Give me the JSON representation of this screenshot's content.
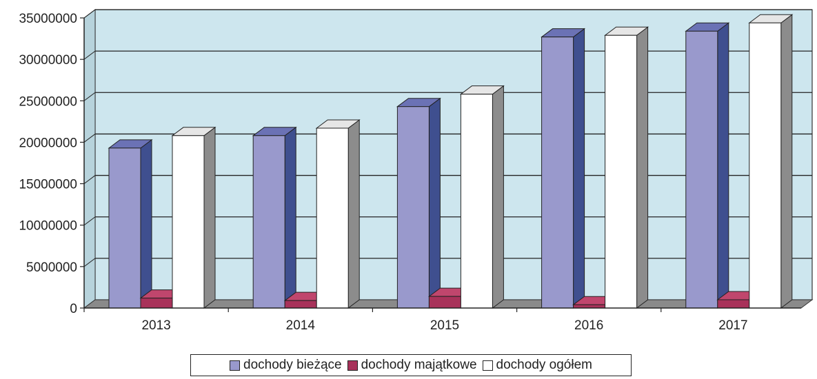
{
  "chart_data": {
    "type": "bar",
    "title": "",
    "xlabel": "",
    "ylabel": "",
    "categories": [
      "2013",
      "2014",
      "2015",
      "2016",
      "2017"
    ],
    "series": [
      {
        "name": "dochody bieżące",
        "values": [
          19300000,
          20800000,
          24300000,
          32700000,
          33400000
        ],
        "color": "#9999cc",
        "side": "#3f4f8f",
        "top": "#6b72b5"
      },
      {
        "name": "dochody majątkowe",
        "values": [
          1200000,
          900000,
          1400000,
          400000,
          1000000
        ],
        "color": "#a8325a",
        "side": "#6e1d3a",
        "top": "#c0466d"
      },
      {
        "name": "dochody ogółem",
        "values": [
          20800000,
          21700000,
          25800000,
          32900000,
          34400000
        ],
        "color": "#ffffff",
        "side": "#8c8c8c",
        "top": "#e6e6e6"
      }
    ],
    "yticks": [
      "0",
      "5000000",
      "10000000",
      "15000000",
      "20000000",
      "25000000",
      "30000000",
      "35000000"
    ],
    "ylim": [
      0,
      35000000
    ],
    "grid": true,
    "legend": "bottom",
    "plot_background": "#cde6ee"
  }
}
